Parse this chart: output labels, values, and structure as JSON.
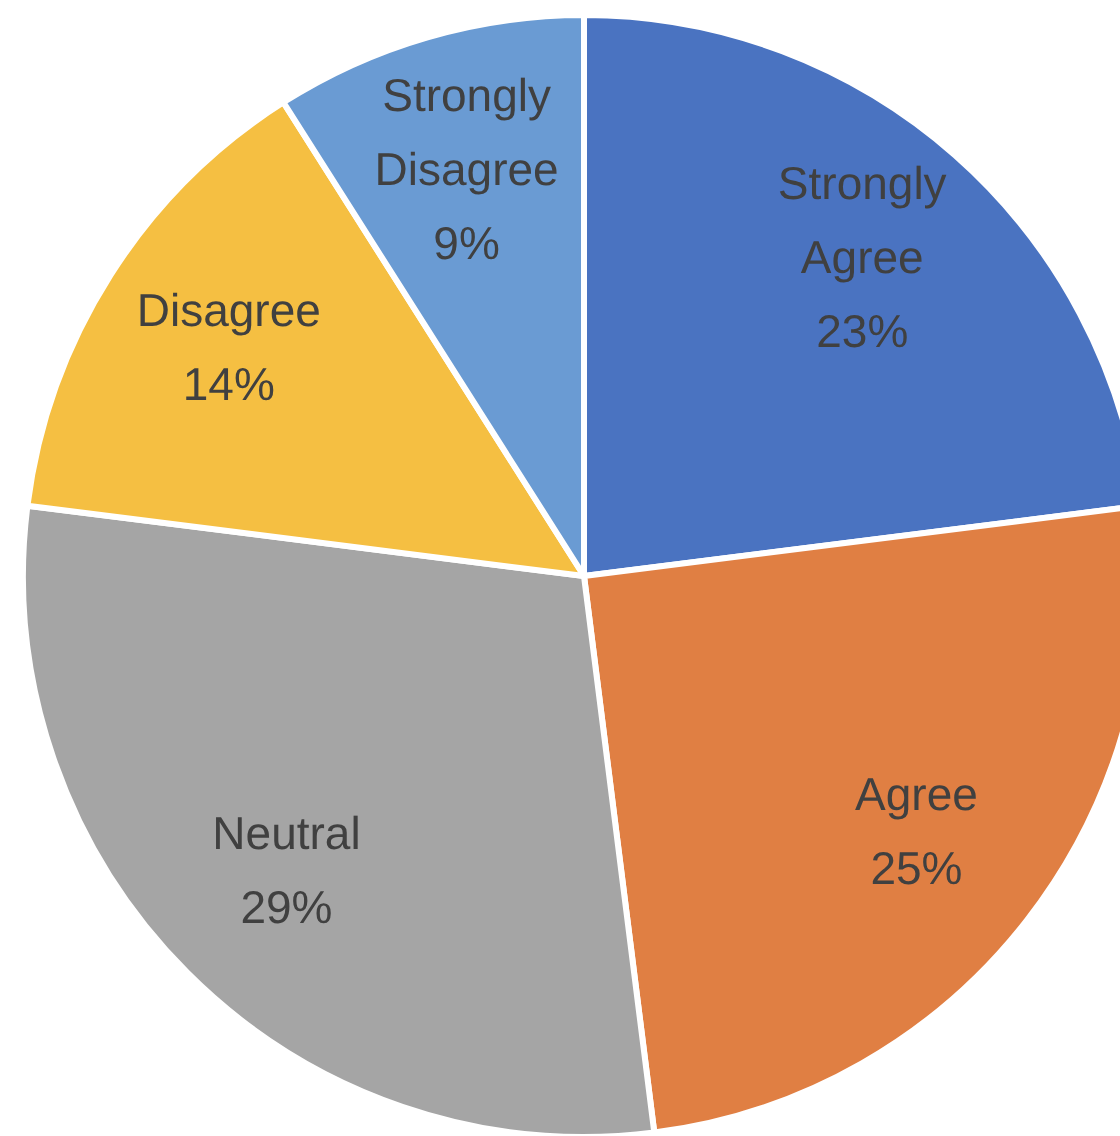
{
  "chart_data": {
    "type": "pie",
    "categories": [
      "Strongly Agree",
      "Agree",
      "Neutral",
      "Disagree",
      "Strongly Disagree"
    ],
    "values": [
      23,
      25,
      29,
      14,
      9
    ],
    "colors": [
      "#4a73c1",
      "#e07f43",
      "#a5a5a5",
      "#f5bf42",
      "#6a9bd3"
    ],
    "value_labels": [
      "23%",
      "25%",
      "29%",
      "14%",
      "9%"
    ],
    "legend": false
  }
}
